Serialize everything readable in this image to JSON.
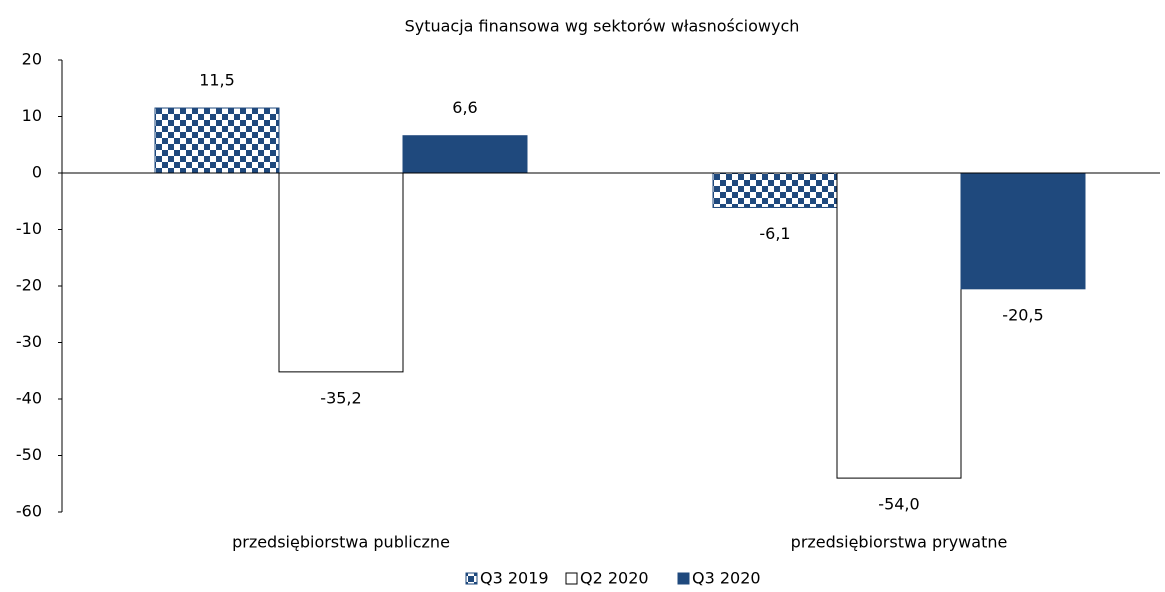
{
  "chart_data": {
    "type": "bar",
    "title": "Sytuacja finansowa wg sektorów własnościowych",
    "categories": [
      "przedsiębiorstwa publiczne",
      "przedsiębiorstwa prywatne"
    ],
    "series": [
      {
        "name": "Q3 2019",
        "color": "#1f497d",
        "pattern": "checker",
        "values": [
          11.5,
          -6.1
        ],
        "value_labels": [
          "11,5",
          "-6,1"
        ]
      },
      {
        "name": "Q2 2020",
        "color": "#ffffff",
        "values": [
          -35.2,
          -54.0
        ],
        "value_labels": [
          "-35,2",
          "-54,0"
        ]
      },
      {
        "name": "Q3 2020",
        "color": "#1f497d",
        "values": [
          6.6,
          -20.5
        ],
        "value_labels": [
          "6,6",
          "-20,5"
        ]
      }
    ],
    "ylim": [
      -60,
      20
    ],
    "yticks": [
      -60,
      -50,
      -40,
      -30,
      -20,
      -10,
      0,
      10,
      20
    ],
    "grid": false,
    "legend": "bottom"
  }
}
